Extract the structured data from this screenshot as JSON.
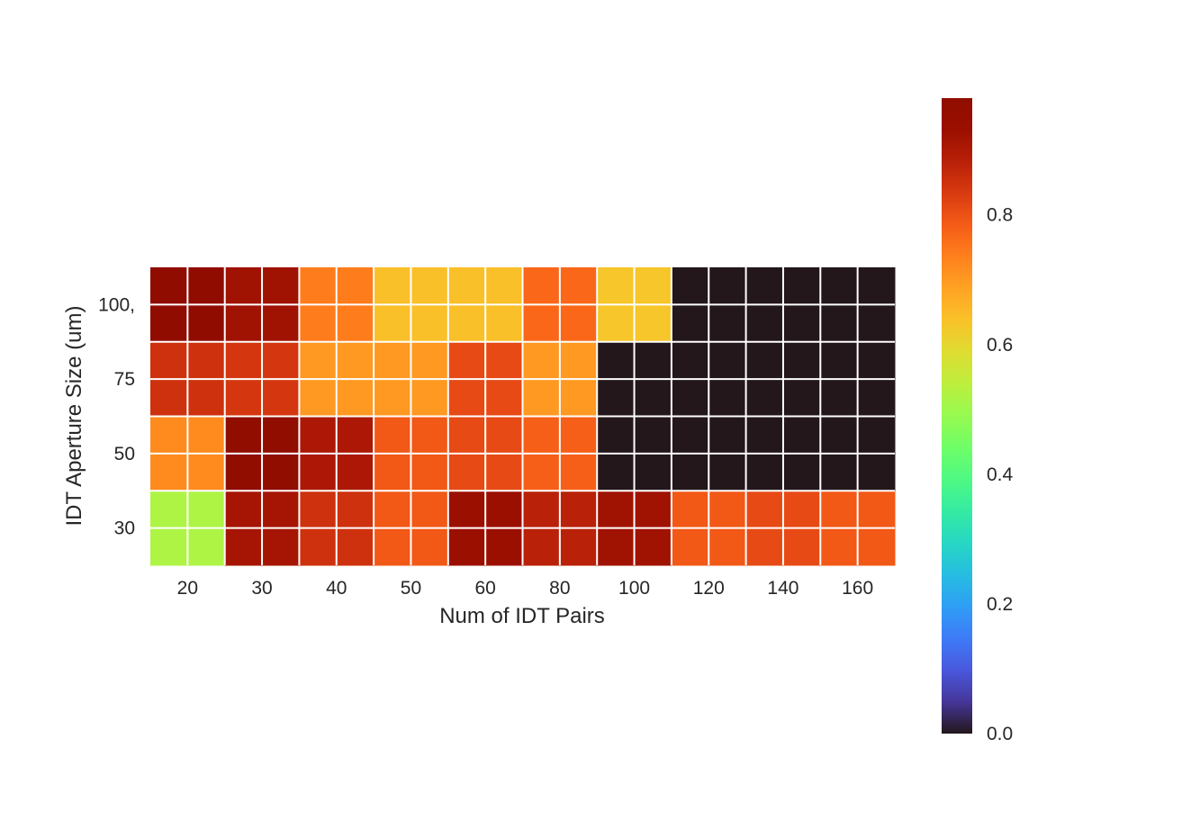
{
  "chart_data": {
    "type": "heatmap",
    "title": "",
    "xlabel": "Num of IDT Pairs",
    "ylabel": "IDT Aperture Size (um)",
    "x_categories": [
      "20",
      "30",
      "40",
      "50",
      "60",
      "80",
      "100",
      "120",
      "140",
      "160"
    ],
    "y_categories": [
      "100,",
      "75",
      "50",
      "30"
    ],
    "values": [
      [
        0.97,
        0.92,
        0.74,
        0.64,
        0.64,
        0.77,
        0.63,
        0.0,
        0.0,
        0.0
      ],
      [
        0.85,
        0.84,
        0.7,
        0.7,
        0.81,
        0.7,
        0.0,
        0.0,
        0.0,
        0.0
      ],
      [
        0.72,
        0.98,
        0.9,
        0.79,
        0.81,
        0.78,
        0.0,
        0.0,
        0.0,
        0.0
      ],
      [
        0.52,
        0.91,
        0.85,
        0.79,
        0.93,
        0.88,
        0.92,
        0.79,
        0.81,
        0.79
      ]
    ],
    "colorbar": {
      "colormap": "turbo",
      "min": 0.0,
      "max": 0.98,
      "ticks": [
        "0.0",
        "0.2",
        "0.4",
        "0.6",
        "0.8"
      ]
    },
    "grid": true
  }
}
